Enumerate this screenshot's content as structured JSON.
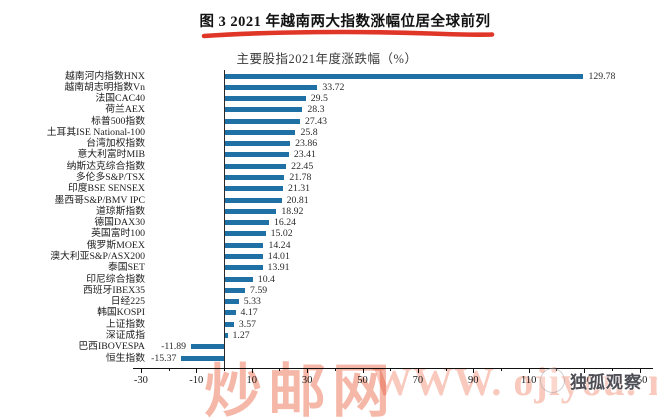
{
  "figure": {
    "title": "图 3  2021 年越南两大指数涨幅位居全球前列"
  },
  "chart_data": {
    "type": "bar",
    "orientation": "horizontal",
    "title": "主要股指2021年度涨跌幅（%）",
    "categories": [
      "越南河内指数HNX",
      "越南胡志明指数Vn",
      "法国CAC40",
      "荷兰AEX",
      "标普500指数",
      "土耳其ISE National-100",
      "台湾加权指数",
      "意大利富时MIB",
      "纳斯达克综合指数",
      "多伦多S&P/TSX",
      "印度BSE SENSEX",
      "墨西哥S&P/BMV IPC",
      "道琼斯指数",
      "德国DAX30",
      "英国富时100",
      "俄罗斯MOEX",
      "澳大利亚S&P/ASX200",
      "泰国SET",
      "印尼综合指数",
      "西班牙IBEX35",
      "日经225",
      "韩国KOSPI",
      "上证指数",
      "深证成指",
      "巴西IBOVESPA",
      "恒生指数"
    ],
    "values": [
      129.78,
      33.72,
      29.5,
      28.3,
      27.43,
      25.8,
      23.86,
      23.41,
      22.45,
      21.78,
      21.31,
      20.81,
      18.92,
      16.24,
      15.02,
      14.24,
      14.01,
      13.91,
      10.4,
      7.59,
      5.33,
      4.17,
      3.57,
      1.27,
      -11.89,
      -15.37
    ],
    "x_ticks": [
      -30,
      -10,
      10,
      30,
      50,
      70,
      90,
      110,
      130,
      150
    ],
    "xlim": [
      -33,
      155
    ],
    "grid": false,
    "bar_color": "#1f70a4",
    "accent_red": "#dd2b1c"
  },
  "watermark": {
    "cn": "炒邮网",
    "latin": "WWW. ojiyou. net"
  },
  "logo": {
    "text": "独孤观察"
  }
}
